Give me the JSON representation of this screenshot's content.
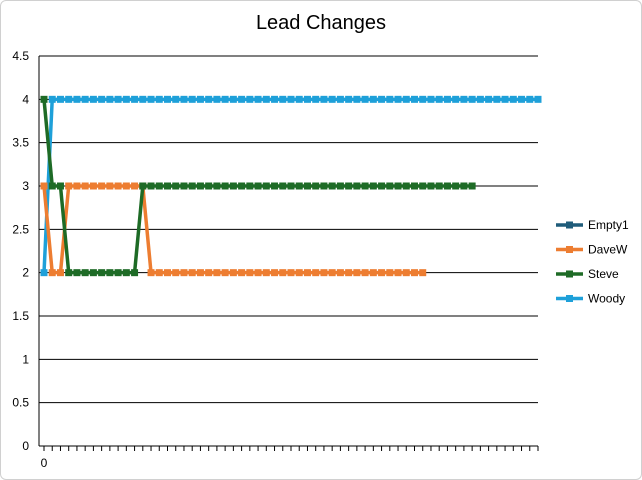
{
  "chart_data": {
    "type": "line",
    "title": "Lead Changes",
    "xlabel": "",
    "ylabel": "",
    "ylim": [
      0,
      4.5
    ],
    "y_ticks": [
      "0",
      "0.5",
      "1",
      "1.5",
      "2",
      "2.5",
      "3",
      "3.5",
      "4",
      "4.5"
    ],
    "x_tick_labels": [
      "0"
    ],
    "grid": "horizontal",
    "legend_position": "right",
    "x_count": 61,
    "series": [
      {
        "name": "Empty1",
        "color": "#1f5c7a",
        "values": []
      },
      {
        "name": "DaveW",
        "color": "#ed7d31",
        "values": [
          3,
          2,
          2,
          3,
          3,
          3,
          3,
          3,
          3,
          3,
          3,
          3,
          3,
          2,
          2,
          2,
          2,
          2,
          2,
          2,
          2,
          2,
          2,
          2,
          2,
          2,
          2,
          2,
          2,
          2,
          2,
          2,
          2,
          2,
          2,
          2,
          2,
          2,
          2,
          2,
          2,
          2,
          2,
          2,
          2,
          2,
          2
        ]
      },
      {
        "name": "Steve",
        "color": "#1e6b26",
        "values": [
          4,
          3,
          3,
          2,
          2,
          2,
          2,
          2,
          2,
          2,
          2,
          2,
          3,
          3,
          3,
          3,
          3,
          3,
          3,
          3,
          3,
          3,
          3,
          3,
          3,
          3,
          3,
          3,
          3,
          3,
          3,
          3,
          3,
          3,
          3,
          3,
          3,
          3,
          3,
          3,
          3,
          3,
          3,
          3,
          3,
          3,
          3,
          3,
          3,
          3,
          3,
          3,
          3
        ]
      },
      {
        "name": "Woody",
        "color": "#1ea0d9",
        "values": [
          2,
          4,
          4,
          4,
          4,
          4,
          4,
          4,
          4,
          4,
          4,
          4,
          4,
          4,
          4,
          4,
          4,
          4,
          4,
          4,
          4,
          4,
          4,
          4,
          4,
          4,
          4,
          4,
          4,
          4,
          4,
          4,
          4,
          4,
          4,
          4,
          4,
          4,
          4,
          4,
          4,
          4,
          4,
          4,
          4,
          4,
          4,
          4,
          4,
          4,
          4,
          4,
          4,
          4,
          4,
          4,
          4,
          4,
          4,
          4,
          4
        ]
      }
    ]
  }
}
